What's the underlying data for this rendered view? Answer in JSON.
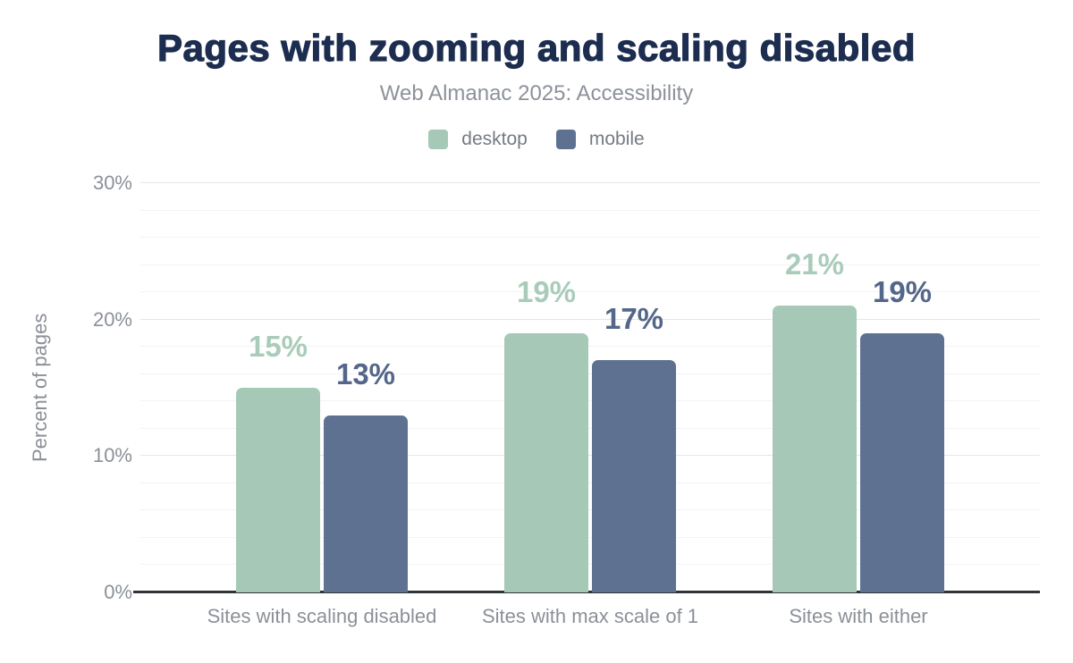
{
  "header": {
    "title": "Pages with zooming and scaling disabled",
    "subtitle": "Web Almanac 2025: Accessibility"
  },
  "colors": {
    "background": "#ffffff",
    "title": "#1c2d50",
    "subtitle": "#8d929a",
    "legend_text": "#757b84",
    "axis_text": "#8b9097",
    "grid_major": "#e4e5e8",
    "grid_minor": "#f3f3f5",
    "baseline": "#303439",
    "desktop": "#a6c9b7",
    "mobile": "#5e7190"
  },
  "chart_data": {
    "type": "bar",
    "title": "Pages with zooming and scaling disabled",
    "subtitle": "Web Almanac 2025: Accessibility",
    "categories": [
      "Sites with scaling disabled",
      "Sites with max scale of 1",
      "Sites with either"
    ],
    "series": [
      {
        "name": "desktop",
        "color": "#a6c9b7",
        "label_color": "#a9ccba",
        "values": [
          15,
          19,
          21
        ],
        "labels": [
          "15%",
          "19%",
          "21%"
        ]
      },
      {
        "name": "mobile",
        "color": "#5e7190",
        "label_color": "#54678a",
        "values": [
          13,
          17,
          19
        ],
        "labels": [
          "13%",
          "17%",
          "19%"
        ]
      }
    ],
    "xlabel": "",
    "ylabel": "Percent of pages",
    "ylim": [
      0,
      30
    ],
    "yticks": [
      0,
      10,
      20,
      30
    ],
    "ytick_labels": [
      "0%",
      "10%",
      "20%",
      "30%"
    ],
    "grid": {
      "orientation": "horizontal",
      "minor_step": 2,
      "major_step": 10
    },
    "legend_position": "top",
    "value_labels": "above bars, colored per series"
  }
}
